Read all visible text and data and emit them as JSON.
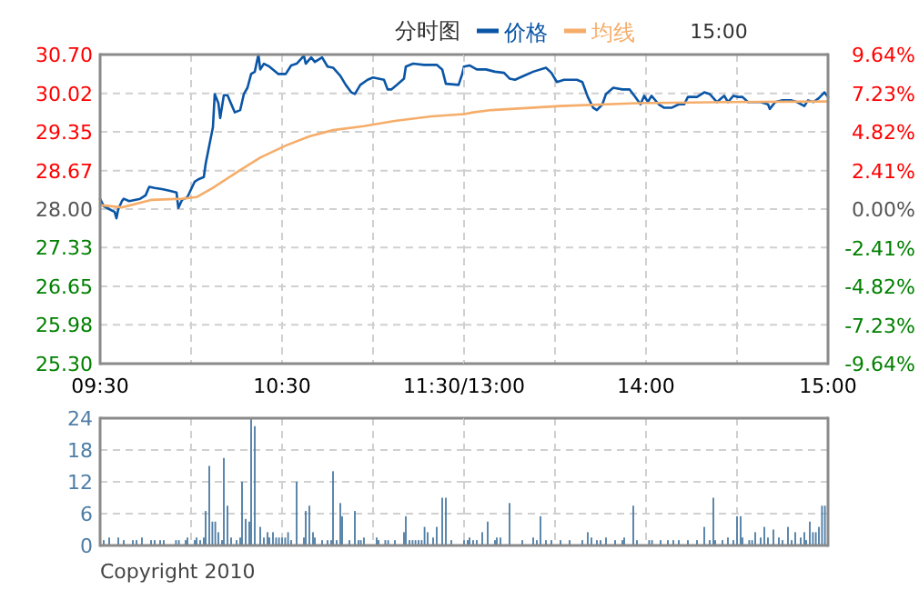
{
  "chart_data": [
    {
      "type": "line",
      "title": "分时图",
      "legend": "top",
      "grid": true,
      "xlim": [
        9.5,
        11.5
      ],
      "xticks": [
        {
          "value": 9.5,
          "label": "09:30"
        },
        {
          "value": 10,
          "label": null
        },
        {
          "value": 10.5,
          "label": "10:30"
        },
        {
          "value": 11,
          "label": null
        },
        {
          "value": 11.5,
          "label": "11:30/13:00"
        }
      ],
      "ylim": [
        25.3,
        30.7
      ],
      "yticks": [
        {
          "value": 30.7,
          "label": "30.70"
        },
        30.02,
        29.35,
        28.67,
        {
          "value": 28.0,
          "label": "28.00"
        },
        27.33,
        26.65,
        25.98,
        {
          "value": 25.3,
          "label": "25.30"
        }
      ],
      "series": [
        {
          "name": "价格",
          "color": "#0a55a5",
          "x": [
            9.5,
            9.52,
            9.55,
            9.58,
            9.59,
            9.6,
            9.62,
            9.63,
            9.66,
            9.72,
            9.75,
            9.77,
            9.8,
            9.84,
            9.88,
            9.92,
            9.93,
            9.95,
            9.98,
            10.02,
            10.04,
            10.07,
            10.08,
            10.1,
            10.12,
            10.13,
            10.15,
            10.16,
            10.18,
            10.2,
            10.24,
            10.27,
            10.29,
            10.31,
            10.33,
            10.35,
            10.37,
            10.38,
            10.4,
            10.43,
            10.48,
            10.52,
            10.55,
            10.58,
            10.62,
            10.63,
            10.66,
            10.68,
            10.72,
            10.75,
            10.78,
            10.82,
            10.85,
            10.88,
            10.9,
            10.93,
            10.97,
            11.0,
            11.03,
            11.06,
            11.08,
            11.1,
            11.13,
            11.17,
            11.18,
            11.22,
            11.28,
            11.35,
            11.38,
            11.4,
            11.47,
            11.49,
            11.5
          ],
          "values": [
            28.18,
            28.05,
            28.0,
            27.95,
            27.84,
            28.0,
            28.14,
            28.18,
            28.14,
            28.18,
            28.24,
            28.39,
            28.37,
            28.35,
            28.32,
            28.29,
            28.02,
            28.16,
            28.21,
            28.48,
            28.52,
            28.56,
            28.79,
            29.11,
            29.43,
            30.01,
            29.85,
            29.59,
            29.99,
            29.99,
            29.69,
            29.73,
            30.01,
            30.12,
            30.36,
            30.4,
            30.7,
            30.44,
            30.54,
            30.49,
            30.36,
            30.36,
            30.51,
            30.54,
            30.68,
            30.54,
            30.65,
            30.57,
            30.65,
            30.49,
            30.47,
            30.33,
            30.17,
            30.04,
            30.01,
            30.17,
            30.26,
            30.3,
            30.28,
            30.26,
            30.09,
            30.09,
            30.17,
            30.28,
            30.49,
            30.54,
            30.52,
            30.52,
            30.44,
            30.19,
            30.17,
            30.36,
            30.49
          ]
        },
        {
          "name": "均线",
          "color": "#f5ad6a",
          "x": [
            9.5,
            9.62,
            9.78,
            9.95,
            10.03,
            10.12,
            10.25,
            10.38,
            10.52,
            10.65,
            10.78,
            10.95,
            11.12,
            11.32,
            11.5
          ],
          "values": [
            28.07,
            28.03,
            28.16,
            28.18,
            28.21,
            28.37,
            28.64,
            28.9,
            29.11,
            29.27,
            29.38,
            29.45,
            29.54,
            29.62,
            29.66
          ]
        }
      ]
    },
    {
      "type": "line",
      "grid": true,
      "annotations": [
        "15:00"
      ],
      "xlim": [
        13,
        15
      ],
      "xticks": [
        {
          "value": 13,
          "label": null
        },
        {
          "value": 13.5,
          "label": null
        },
        {
          "value": 14,
          "label": "14:00"
        },
        {
          "value": 14.5,
          "label": null
        },
        {
          "value": 15,
          "label": "15:00"
        }
      ],
      "ylim": [
        25.3,
        30.7
      ],
      "y2lim": [
        -9.64,
        9.64
      ],
      "y2ticks": [
        {
          "value": 9.64,
          "label": "9.64%"
        },
        {
          "value": 7.23,
          "label": "7.23%"
        },
        {
          "value": 4.82,
          "label": "4.82%"
        },
        {
          "value": 2.41,
          "label": "2.41%"
        },
        {
          "value": 0,
          "label": "0.00%"
        },
        {
          "value": -2.41,
          "label": "-2.41%"
        },
        {
          "value": -4.82,
          "label": "-4.82%"
        },
        {
          "value": -7.23,
          "label": "-7.23%"
        },
        {
          "value": -9.64,
          "label": "-9.64%"
        }
      ],
      "series": [
        {
          "color": "#0a55a5",
          "x": [
            13.0,
            13.03,
            13.07,
            13.12,
            13.17,
            13.22,
            13.25,
            13.28,
            13.33,
            13.38,
            13.45,
            13.48,
            13.51,
            13.55,
            13.62,
            13.65,
            13.68,
            13.71,
            13.73,
            13.76,
            13.78,
            13.82,
            13.87,
            13.91,
            13.94,
            13.97,
            13.99,
            14.01,
            14.03,
            14.07,
            14.1,
            14.14,
            14.18,
            14.21,
            14.23,
            14.28,
            14.32,
            14.35,
            14.37,
            14.39,
            14.43,
            14.45,
            14.48,
            14.5,
            14.53,
            14.56,
            14.61,
            14.63,
            14.67,
            14.68,
            14.71,
            14.75,
            14.8,
            14.83,
            14.87,
            14.89,
            14.92,
            14.95,
            14.98,
            15
          ],
          "values": [
            30.49,
            30.51,
            30.44,
            30.44,
            30.4,
            30.38,
            30.28,
            30.26,
            30.33,
            30.4,
            30.47,
            30.38,
            30.22,
            30.26,
            30.26,
            30.22,
            29.96,
            29.77,
            29.73,
            29.83,
            30.01,
            30.12,
            30.09,
            30.09,
            29.96,
            29.83,
            29.98,
            29.87,
            29.98,
            29.83,
            29.77,
            29.77,
            29.83,
            29.83,
            29.96,
            29.96,
            30.04,
            30.01,
            29.94,
            29.87,
            29.98,
            29.87,
            29.98,
            29.96,
            29.96,
            29.87,
            29.87,
            29.87,
            29.83,
            29.75,
            29.87,
            29.9,
            29.9,
            29.87,
            29.8,
            29.9,
            29.87,
            29.94,
            30.04,
            29.96
          ]
        },
        {
          "color": "#f5ad6a",
          "x": [
            13.0,
            13.05,
            13.15,
            13.53,
            13.95,
            14.45,
            15
          ],
          "values": [
            29.66,
            29.69,
            29.73,
            29.8,
            29.85,
            29.87,
            29.88
          ]
        }
      ]
    },
    {
      "type": "bar",
      "grid": true,
      "annotations": [
        "Copyright 2010"
      ],
      "xlim": [
        9.5,
        11.5
      ],
      "ylim": [
        0,
        24
      ],
      "yticks": [
        0,
        6,
        12,
        18,
        24
      ],
      "series": [
        {
          "color": "#4f7ea6",
          "x": [
            9.52,
            9.55,
            9.6,
            9.63,
            9.68,
            9.7,
            9.73,
            9.78,
            9.8,
            9.83,
            9.85,
            9.917,
            9.933,
            9.97,
            9.98,
            10.02,
            10.03,
            10.05,
            10.07,
            10.08,
            10.1,
            10.117,
            10.133,
            10.15,
            10.17,
            10.18,
            10.2,
            10.22,
            10.25,
            10.27,
            10.28,
            10.3,
            10.32,
            10.33,
            10.35,
            10.38,
            10.4,
            10.42,
            10.43,
            10.45,
            10.467,
            10.483,
            10.5,
            10.517,
            10.533,
            10.55,
            10.58,
            10.62,
            10.63,
            10.65,
            10.67,
            10.68,
            10.72,
            10.75,
            10.77,
            10.78,
            10.8,
            10.82,
            10.83,
            10.87,
            10.9,
            10.92,
            10.933,
            10.95,
            11.02,
            11.03,
            11.067,
            11.083,
            11.12,
            11.17,
            11.18,
            11.2,
            11.217,
            11.233,
            11.25,
            11.267,
            11.283,
            11.3,
            11.33,
            11.35,
            11.38,
            11.4,
            11.43,
            11.5
          ],
          "values": [
            1,
            1.5,
            1.5,
            1,
            1,
            1,
            1.5,
            1,
            1,
            1,
            1,
            1,
            1,
            1,
            1.5,
            1,
            1.5,
            1,
            1.5,
            6.5,
            15,
            4.5,
            4.5,
            2.5,
            1,
            16.5,
            7.5,
            1.5,
            1,
            1.5,
            12,
            5,
            4.5,
            24,
            22.5,
            3.5,
            1.5,
            2.5,
            1.5,
            2.5,
            1.5,
            1.5,
            1.5,
            1.5,
            2.5,
            1,
            12,
            1.5,
            6.5,
            7.5,
            2.5,
            1.5,
            1,
            1,
            1,
            14,
            1,
            8,
            5.5,
            1,
            6.5,
            1,
            1,
            1.5,
            1.5,
            1,
            1,
            1,
            1,
            2.5,
            5.5,
            1,
            1,
            1,
            1,
            1,
            3.5,
            2.5,
            1.5,
            3.5,
            9,
            9,
            1,
            1
          ]
        }
      ]
    },
    {
      "type": "bar",
      "grid": true,
      "xlim": [
        13,
        15
      ],
      "ylim": [
        0,
        24
      ],
      "series": [
        {
          "color": "#4f7ea6",
          "x": [
            13.02,
            13.03,
            13.05,
            13.07,
            13.1,
            13.13,
            13.17,
            13.18,
            13.2,
            13.25,
            13.32,
            13.38,
            13.4,
            13.42,
            13.45,
            13.48,
            13.53,
            13.58,
            13.65,
            13.68,
            13.7,
            13.73,
            13.75,
            13.78,
            13.83,
            13.87,
            13.88,
            13.93,
            13.95,
            14.017,
            14.033,
            14.08,
            14.12,
            14.15,
            14.18,
            14.23,
            14.28,
            14.32,
            14.35,
            14.37,
            14.38,
            14.42,
            14.45,
            14.48,
            14.5,
            14.52,
            14.53,
            14.567,
            14.583,
            14.6,
            14.63,
            14.65,
            14.67,
            14.7,
            14.73,
            14.75,
            14.78,
            14.8,
            14.82,
            14.85,
            14.87,
            14.88,
            14.9,
            14.917,
            14.933,
            14.95,
            14.967,
            14.983
          ],
          "values": [
            1,
            1.5,
            1,
            1,
            2.5,
            4.5,
            1,
            1.5,
            1.5,
            8,
            1,
            1.5,
            1,
            5.5,
            1,
            1,
            1,
            1,
            1,
            2.5,
            1.5,
            1,
            1,
            1.5,
            1,
            1,
            1.5,
            7.5,
            1,
            1,
            1,
            1,
            1,
            1,
            1,
            1,
            1,
            3.5,
            1,
            9,
            1,
            1,
            1.5,
            1,
            5.5,
            5.5,
            1.5,
            1,
            1,
            2.5,
            1.5,
            3.5,
            1.5,
            3,
            1.5,
            1,
            3.5,
            1,
            2.5,
            1.5,
            2.5,
            1,
            4.5,
            2.5,
            2.5,
            3.5,
            7.5,
            7.5
          ]
        }
      ]
    }
  ]
}
